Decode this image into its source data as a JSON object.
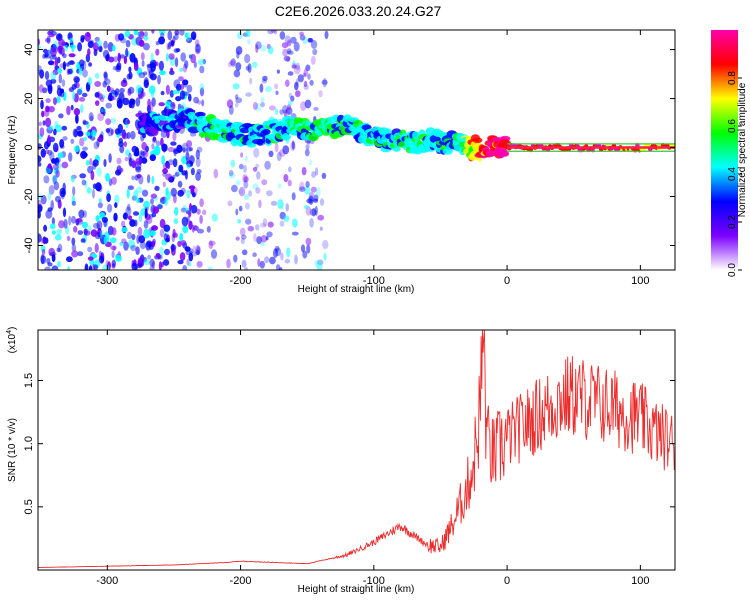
{
  "title": "C2E6.2026.033.20.24.G27",
  "chart_data": [
    {
      "type": "heatmap",
      "xlabel": "Height of straight line (km)",
      "ylabel": "Frequency (Hz)",
      "xlim": [
        -352,
        126
      ],
      "ylim": [
        -50,
        48
      ],
      "x_ticks": [
        -300,
        -200,
        -100,
        0,
        100
      ],
      "x_tick_labels": [
        "-300",
        "-200",
        "-100",
        "0",
        "100"
      ],
      "y_ticks": [
        -40,
        -20,
        0,
        20,
        40
      ],
      "y_tick_labels": [
        "-40",
        "-20",
        "0",
        "20",
        "40"
      ],
      "colorbar": {
        "label": "Normalized spectral amplitude",
        "range": [
          0.0,
          1.0
        ],
        "ticks": [
          0.0,
          0.2,
          0.4,
          0.6,
          0.8
        ],
        "tick_labels": [
          "0.0",
          "0.2",
          "0.4",
          "0.6",
          "0.8"
        ],
        "colors": [
          "#ffffff",
          "#7b00ff",
          "#0000ff",
          "#00ffff",
          "#00ff00",
          "#ffff00",
          "#ff0000",
          "#ff00aa"
        ]
      },
      "ridge": {
        "x": [
          -270,
          -240,
          -220,
          -200,
          -180,
          -160,
          -140,
          -120,
          -100,
          -80,
          -60,
          -40,
          -30,
          -20,
          0,
          50,
          126
        ],
        "frequency": [
          10,
          11,
          8,
          5,
          6,
          8,
          8,
          9,
          4,
          2,
          3,
          2,
          0,
          0,
          0,
          0,
          0
        ],
        "amplitude": [
          0.25,
          0.35,
          0.45,
          0.4,
          0.35,
          0.45,
          0.5,
          0.45,
          0.4,
          0.45,
          0.45,
          0.4,
          0.6,
          0.85,
          0.95,
          0.95,
          0.8
        ]
      }
    },
    {
      "type": "line",
      "xlabel": "Height of straight line (km)",
      "ylabel": "SNR (10 * v/v)",
      "y_scale_label": "(x10",
      "y_scale_exponent": "4",
      "y_scale_suffix": ")",
      "xlim": [
        -352,
        126
      ],
      "ylim": [
        0,
        1.9
      ],
      "x_ticks": [
        -300,
        -200,
        -100,
        0,
        100
      ],
      "x_tick_labels": [
        "-300",
        "-200",
        "-100",
        "0",
        "100"
      ],
      "y_ticks": [
        0.5,
        1.0,
        1.5
      ],
      "y_tick_labels": [
        "0.5",
        "1.0",
        "1.5"
      ],
      "color": "#ee2b2b",
      "series": [
        {
          "name": "SNR",
          "x": [
            -352,
            -300,
            -250,
            -210,
            -200,
            -150,
            -120,
            -100,
            -80,
            -60,
            -50,
            -40,
            -30,
            -25,
            -20,
            -18,
            -15,
            -10,
            0,
            20,
            40,
            50,
            60,
            80,
            100,
            110,
            126
          ],
          "values": [
            0.02,
            0.03,
            0.04,
            0.06,
            0.07,
            0.05,
            0.12,
            0.22,
            0.35,
            0.2,
            0.18,
            0.38,
            0.65,
            0.85,
            1.3,
            1.85,
            1.0,
            0.9,
            1.05,
            1.2,
            1.35,
            1.38,
            1.35,
            1.28,
            1.2,
            1.1,
            1.0
          ]
        }
      ]
    }
  ]
}
